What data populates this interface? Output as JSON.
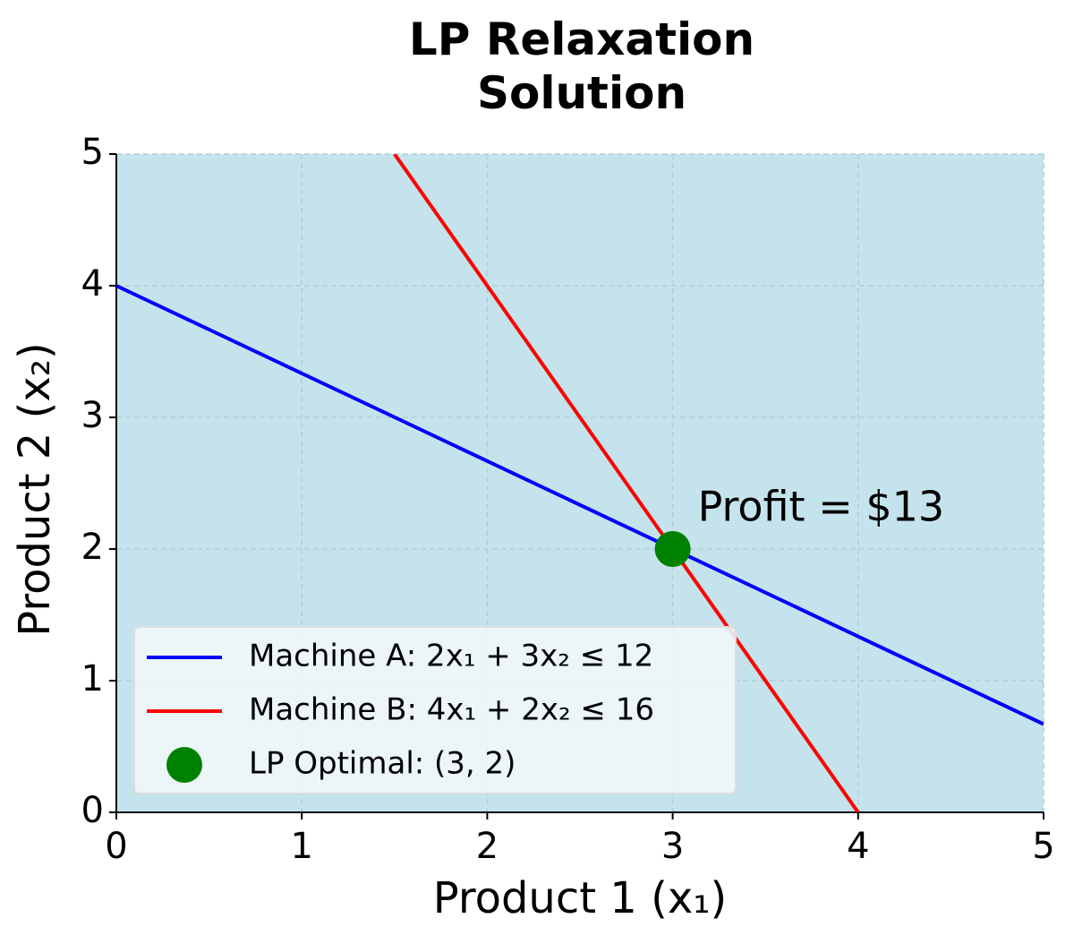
{
  "chart_data": {
    "type": "line",
    "title": "LP Relaxation Solution",
    "xlabel": "Product 1 (x₁)",
    "ylabel": "Product 2 (x₂)",
    "series": [
      {
        "name": "Machine A: 2x₁ + 3x₂ ≤ 12",
        "color": "#0000ff",
        "type": "line",
        "x": [
          0,
          5
        ],
        "values": [
          4,
          0.67
        ]
      },
      {
        "name": "Machine B: 4x₁ + 2x₂ ≤ 16",
        "color": "#ff0000",
        "type": "line",
        "x": [
          1.5,
          4
        ],
        "values": [
          5,
          0
        ]
      },
      {
        "name": "LP Optimal: (3, 2)",
        "color": "#008000",
        "type": "scatter",
        "x": [
          3
        ],
        "values": [
          2
        ]
      }
    ],
    "annotation": "Profit = $13",
    "xlim": [
      0,
      5
    ],
    "ylim": [
      0,
      5
    ],
    "xticks": [
      0,
      1,
      2,
      3,
      4,
      5
    ],
    "yticks": [
      0,
      1,
      2,
      3,
      4,
      5
    ],
    "grid": true,
    "background": "#c5e3ec",
    "legend": "lower left"
  }
}
